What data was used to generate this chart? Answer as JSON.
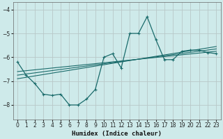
{
  "background_color": "#ceeaea",
  "grid_color": "#b8c8c8",
  "line_color": "#1a6b6b",
  "xlabel": "Humidex (Indice chaleur)",
  "xlim": [
    -0.5,
    23.5
  ],
  "ylim": [
    -8.6,
    -3.7
  ],
  "yticks": [
    -8,
    -7,
    -6,
    -5,
    -4
  ],
  "xticks": [
    0,
    1,
    2,
    3,
    4,
    5,
    6,
    7,
    8,
    9,
    10,
    11,
    12,
    13,
    14,
    15,
    16,
    17,
    18,
    19,
    20,
    21,
    22,
    23
  ],
  "series_main": {
    "x": [
      0,
      1,
      2,
      3,
      4,
      5,
      6,
      7,
      8,
      9,
      10,
      11,
      12,
      13,
      14,
      15,
      16,
      17,
      18,
      19,
      20,
      21,
      22,
      23
    ],
    "y": [
      -6.2,
      -6.75,
      -7.1,
      -7.55,
      -7.6,
      -7.55,
      -8.0,
      -8.0,
      -7.75,
      -7.35,
      -6.0,
      -5.85,
      -6.45,
      -5.0,
      -5.0,
      -4.3,
      -5.25,
      -6.1,
      -6.1,
      -5.75,
      -5.7,
      -5.7,
      -5.8,
      -5.85
    ]
  },
  "series_trend": [
    {
      "x": [
        0,
        23
      ],
      "y": [
        -6.6,
        -5.75
      ]
    },
    {
      "x": [
        0,
        23
      ],
      "y": [
        -6.75,
        -5.65
      ]
    },
    {
      "x": [
        0,
        23
      ],
      "y": [
        -6.9,
        -5.55
      ]
    }
  ]
}
